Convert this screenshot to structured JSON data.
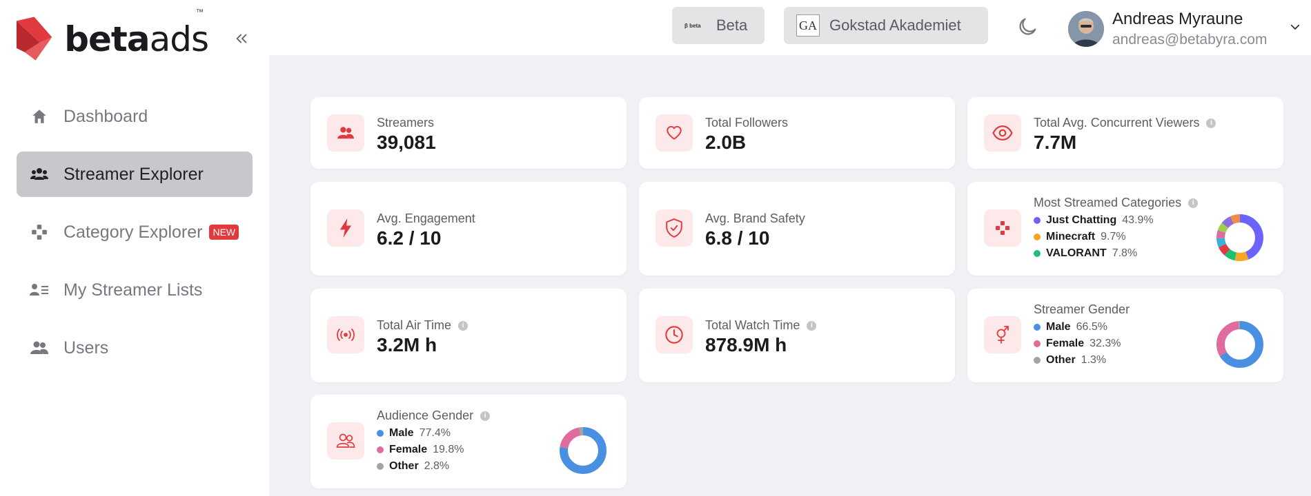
{
  "brand": {
    "logo_text_bold": "beta",
    "logo_text_thin": "ads",
    "trademark": "™"
  },
  "sidebar": {
    "items": [
      {
        "label": "Dashboard",
        "icon": "home-icon",
        "active": false
      },
      {
        "label": "Streamer Explorer",
        "icon": "users-icon",
        "active": true
      },
      {
        "label": "Category Explorer",
        "icon": "gamepad-icon",
        "active": false,
        "badge": "NEW"
      },
      {
        "label": "My Streamer Lists",
        "icon": "user-list-icon",
        "active": false
      },
      {
        "label": "Users",
        "icon": "user-group-icon",
        "active": false
      }
    ]
  },
  "header": {
    "orgs": [
      {
        "label": "Beta",
        "logo_text": "β beta"
      },
      {
        "label": "Gokstad Akademiet",
        "logo_text": "GA"
      }
    ],
    "user": {
      "name": "Andreas Myraune",
      "email": "andreas@betabyra.com"
    }
  },
  "colors": {
    "accent": "#e03a3e",
    "icon_bg": "#fde9ea",
    "male": "#4a90e2",
    "female": "#e06c9f",
    "other": "#a3a3a3"
  },
  "stats": {
    "streamers": {
      "label": "Streamers",
      "value": "39,081"
    },
    "followers": {
      "label": "Total Followers",
      "value": "2.0B"
    },
    "concurrent": {
      "label": "Total Avg. Concurrent Viewers",
      "value": "7.7M"
    },
    "engagement": {
      "label": "Avg. Engagement",
      "value": "6.2 / 10"
    },
    "brand_safety": {
      "label": "Avg. Brand Safety",
      "value": "6.8 / 10"
    },
    "air_time": {
      "label": "Total Air Time",
      "value": "3.2M h"
    },
    "watch_time": {
      "label": "Total Watch Time",
      "value": "878.9M h"
    }
  },
  "categories": {
    "label": "Most Streamed Categories",
    "items": [
      {
        "name": "Just Chatting",
        "value": "43.9%",
        "color": "#6c63ff"
      },
      {
        "name": "Minecraft",
        "value": "9.7%",
        "color": "#f5a623"
      },
      {
        "name": "VALORANT",
        "value": "7.8%",
        "color": "#1dbf73"
      }
    ]
  },
  "streamer_gender": {
    "label": "Streamer Gender",
    "items": [
      {
        "name": "Male",
        "value": "66.5%",
        "color": "#4a90e2"
      },
      {
        "name": "Female",
        "value": "32.3%",
        "color": "#e06c9f"
      },
      {
        "name": "Other",
        "value": "1.3%",
        "color": "#a3a3a3"
      }
    ]
  },
  "audience_gender": {
    "label": "Audience Gender",
    "items": [
      {
        "name": "Male",
        "value": "77.4%",
        "color": "#4a90e2"
      },
      {
        "name": "Female",
        "value": "19.8%",
        "color": "#e06c9f"
      },
      {
        "name": "Other",
        "value": "2.8%",
        "color": "#a3a3a3"
      }
    ]
  }
}
